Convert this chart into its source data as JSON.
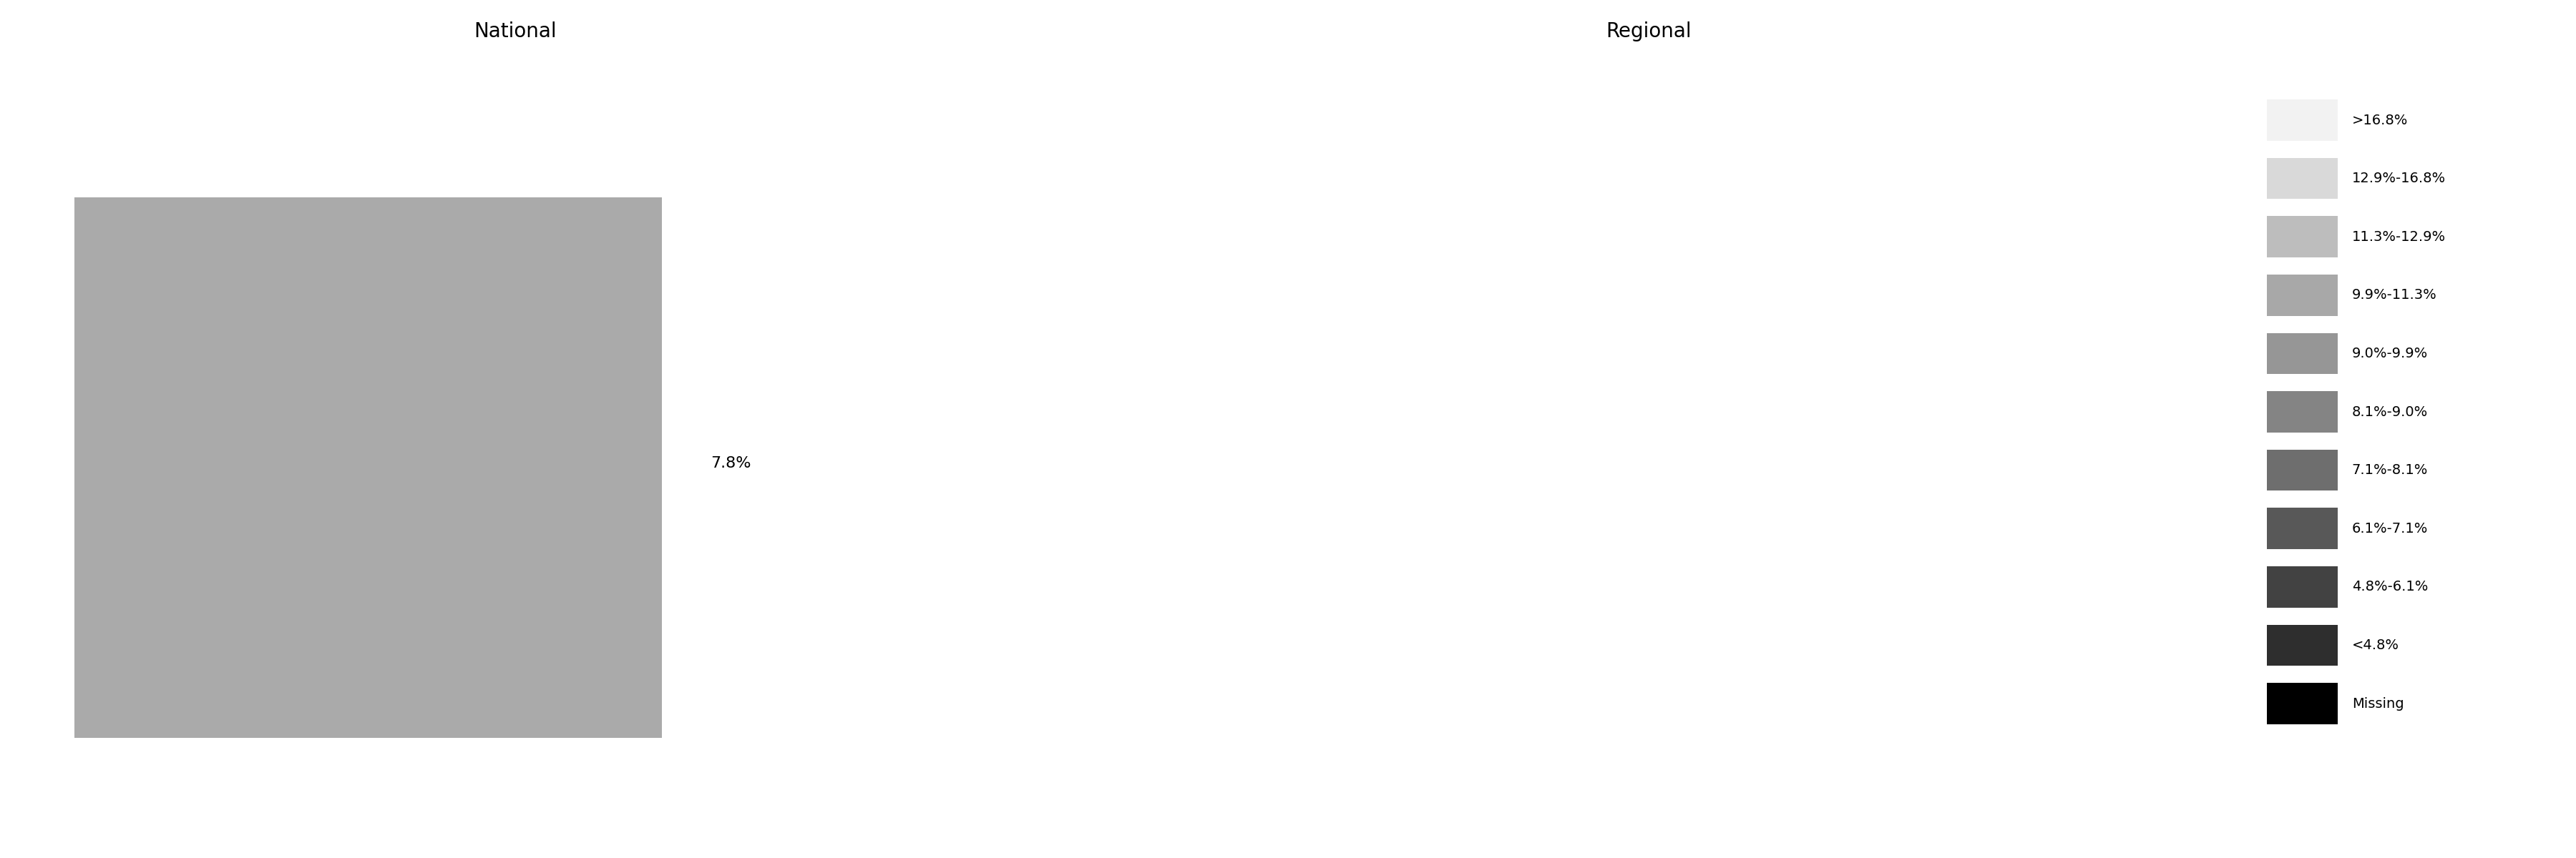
{
  "title_national": "National",
  "title_regional": "Regional",
  "national_color": "#aaaaaa",
  "national_label": "7.8%",
  "legend_colors": [
    "#f2f2f2",
    "#d9d9d9",
    "#bdbdbd",
    "#a8a8a8",
    "#969696",
    "#848484",
    "#6e6e6e",
    "#585858",
    "#424242",
    "#2e2e2e",
    "#000000"
  ],
  "legend_labels": [
    ">16.8%",
    "12.9%-16.8%",
    "11.3%-12.9%",
    "9.9%-11.3%",
    "9.0%-9.9%",
    "8.1%-9.0%",
    "7.1%-8.1%",
    "6.1%-7.1%",
    "4.8%-6.1%",
    "<4.8%",
    "Missing"
  ],
  "background_color": "#ffffff",
  "title_fontsize": 20,
  "label_fontsize": 16,
  "legend_fontsize": 14,
  "fig_width": 36,
  "fig_height": 12
}
